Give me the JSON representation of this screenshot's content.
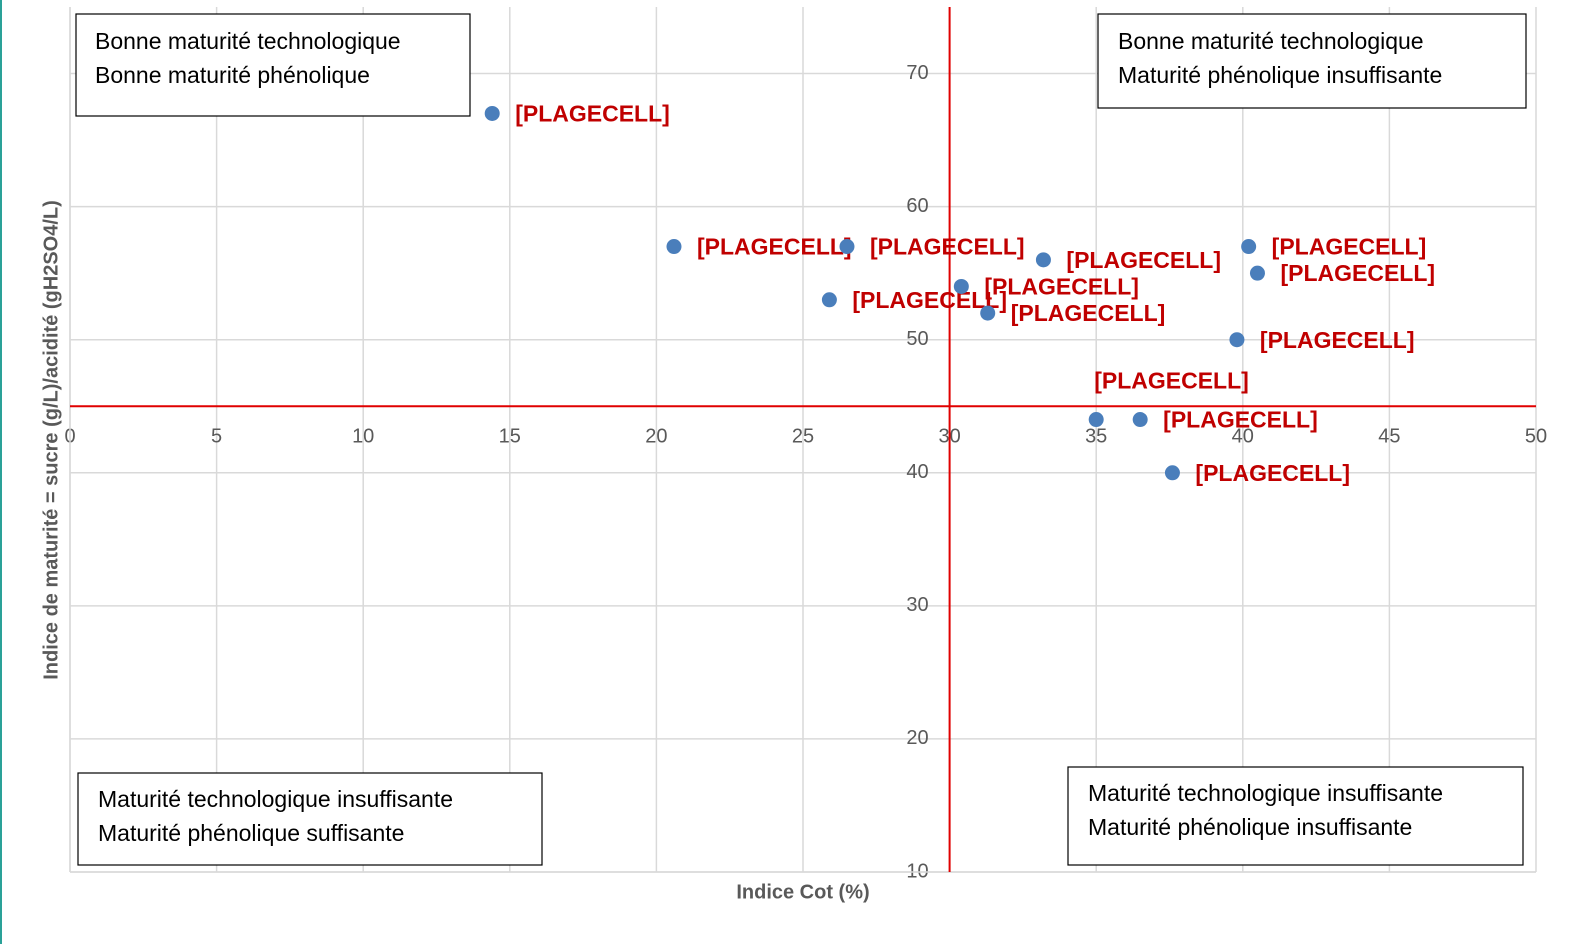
{
  "chart_data": {
    "type": "scatter",
    "x_label": "Indice Cot (%)",
    "y_label": "Indice de maturité = sucre (g/L)/acidité (gH2SO4/L)",
    "x": [
      14.4,
      20.6,
      26.5,
      25.9,
      30.4,
      31.3,
      33.2,
      40.2,
      40.5,
      39.8,
      35.0,
      36.5,
      37.6
    ],
    "values": [
      67,
      57,
      57,
      53,
      54,
      52,
      56,
      57,
      55,
      50,
      44,
      44,
      40
    ],
    "point_labels": [
      "[PLAGECELL]",
      "[PLAGECELL]",
      "[PLAGECELL]",
      "[PLAGECELL]",
      "[PLAGECELL]",
      "[PLAGECELL]",
      "[PLAGECELL]",
      "[PLAGECELL]",
      "[PLAGECELL]",
      "[PLAGECELL]",
      "[PLAGECELL]",
      "[PLAGECELL]",
      "[PLAGECELL]"
    ],
    "color": "#4a7ebb",
    "label_color": "#c00000",
    "xlim": [
      0,
      50
    ],
    "xticks": [
      0,
      5,
      10,
      15,
      20,
      25,
      30,
      35,
      40,
      45,
      50
    ],
    "ylim": [
      10,
      75
    ],
    "yticks": [
      10,
      20,
      30,
      40,
      50,
      60,
      70
    ],
    "x_axis_at": 45,
    "y_axis_at": 30,
    "reference_color": "#e00000",
    "grid": true,
    "annotations": [
      {
        "lines": [
          "Bonne maturité technologique",
          "Bonne maturité phénolique"
        ]
      },
      {
        "lines": [
          "Bonne maturité technologique",
          "Maturité phénolique insuffisante"
        ]
      },
      {
        "lines": [
          "Maturité technologique insuffisante",
          "Maturité phénolique suffisante"
        ]
      },
      {
        "lines": [
          "Maturité technologique insuffisante",
          "Maturité phénolique insuffisante"
        ]
      }
    ]
  }
}
